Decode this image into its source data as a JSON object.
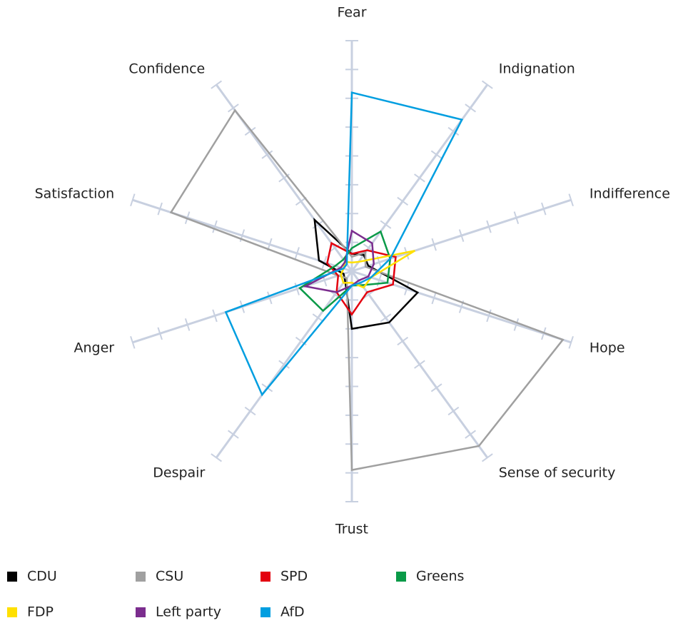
{
  "chart_data": {
    "type": "radar",
    "categories": [
      "Fear",
      "Indignation",
      "Indifference",
      "Hope",
      "Sense of security",
      "Trust",
      "Despair",
      "Anger",
      "Satisfaction",
      "Confidence"
    ],
    "rlim": [
      0,
      8
    ],
    "rticks": [
      1,
      2,
      3,
      4,
      5,
      6,
      7,
      8
    ],
    "series": [
      {
        "name": "CDU",
        "color": "#000000",
        "values": [
          0.6,
          0.7,
          0.6,
          2.4,
          2.2,
          2.0,
          0.4,
          0.3,
          1.2,
          2.2
        ]
      },
      {
        "name": "CSU",
        "color": "#a0a0a0",
        "values": [
          0.5,
          0.8,
          0.5,
          7.7,
          7.5,
          6.9,
          0.3,
          0.5,
          6.6,
          6.9
        ]
      },
      {
        "name": "SPD",
        "color": "#e3000f",
        "values": [
          0.6,
          0.9,
          1.6,
          1.5,
          0.9,
          1.5,
          0.9,
          0.5,
          0.9,
          1.2
        ]
      },
      {
        "name": "Greens",
        "color": "#0a9a48",
        "values": [
          0.8,
          1.7,
          1.4,
          1.3,
          0.6,
          0.5,
          1.7,
          1.9,
          0.6,
          0.5
        ]
      },
      {
        "name": "FDP",
        "color": "#ffe000",
        "values": [
          0.3,
          0.4,
          2.3,
          0.7,
          0.7,
          0.4,
          0.5,
          0.4,
          0.3,
          0.4
        ]
      },
      {
        "name": "Left party",
        "color": "#7b2d8e",
        "values": [
          1.4,
          1.2,
          0.8,
          0.6,
          0.4,
          0.5,
          0.9,
          1.7,
          0.4,
          0.4
        ]
      },
      {
        "name": "AfD",
        "color": "#009ee0",
        "values": [
          6.2,
          6.5,
          1.4,
          0.7,
          0.5,
          0.5,
          5.3,
          4.6,
          0.3,
          0.3
        ]
      }
    ]
  }
}
